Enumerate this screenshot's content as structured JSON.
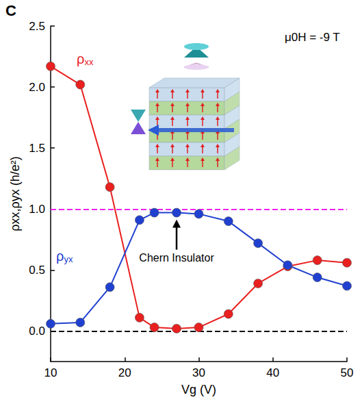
{
  "chart_data": {
    "type": "line",
    "panel": "C",
    "annotations": [
      {
        "text": "μ0H = -9 T"
      },
      {
        "text": "Chern Insulator",
        "x": 27,
        "y": 0.97
      }
    ],
    "x_label": "Vg (V)",
    "y_label": "ρxx,ρyx (h/e²)",
    "x": [
      10,
      14,
      18,
      22,
      24,
      27,
      30,
      34,
      38,
      42,
      46,
      50
    ],
    "series": [
      {
        "name": "ρxx",
        "color": "#e8201f",
        "marker": "circle",
        "line_style": "solid",
        "values": [
          2.17,
          2.02,
          1.18,
          0.11,
          0.03,
          0.02,
          0.03,
          0.14,
          0.39,
          0.53,
          0.58,
          0.56
        ]
      },
      {
        "name": "ρyx",
        "color": "#2040d0",
        "marker": "circle",
        "line_style": "solid",
        "values": [
          0.06,
          0.07,
          0.36,
          0.91,
          0.97,
          0.97,
          0.96,
          0.9,
          0.72,
          0.54,
          0.44,
          0.37
        ]
      }
    ],
    "hlines": [
      {
        "value": 1.0,
        "color": "#ee22ee",
        "line_style": "dashed"
      },
      {
        "value": 0,
        "color": "#000000",
        "line_style": "dashed"
      }
    ],
    "xlim": [
      10,
      50
    ],
    "xticks": [
      10,
      20,
      30,
      40,
      50
    ],
    "ylim": [
      -0.25,
      2.5
    ],
    "yticks": [
      {
        "value": 0,
        "label": "0.0"
      },
      {
        "value": 0.5,
        "label": "0.5"
      },
      {
        "value": 1,
        "label": "1.0"
      },
      {
        "value": 1.5,
        "label": "1.5"
      },
      {
        "value": 2,
        "label": "2.0"
      },
      {
        "value": 2.5,
        "label": "2.5"
      }
    ],
    "grid": false
  }
}
